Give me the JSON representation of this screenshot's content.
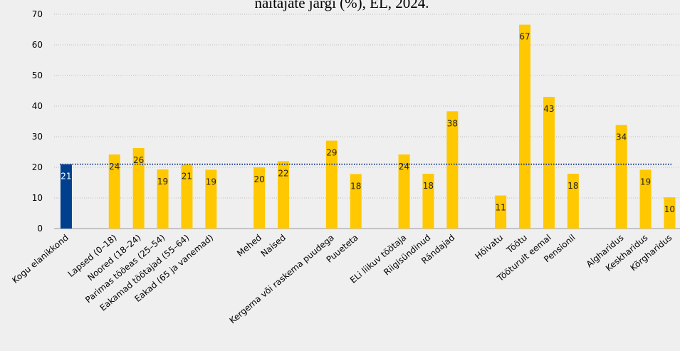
{
  "chart_data": {
    "type": "bar",
    "title": "näitajate järgi (%), EL, 2024.",
    "categories": [
      "Kogu elanikkond",
      null,
      "Lapsed (0–18)",
      "Noored (18–24)",
      "Parimas tööeas (25–54)",
      "Eakamad töötajad (55–64)",
      "Eakad (65 ja vanemad)",
      null,
      "Mehed",
      "Naised",
      null,
      "Kergema või raskema puudega",
      "Puueteta",
      null,
      "ELi liikuv töötaja",
      "Riigisündinud",
      "Rändajad",
      null,
      "Hõivatu",
      "Töötu",
      "Tööturult eemal",
      "Pensionil",
      null,
      "Algharidus",
      "Keskharidus",
      "Kõrgharidus"
    ],
    "values": [
      21,
      null,
      24.2,
      26.3,
      19.3,
      21,
      19.2,
      null,
      20,
      22,
      null,
      28.7,
      17.8,
      null,
      24.2,
      17.9,
      38.3,
      null,
      10.8,
      66.6,
      43,
      17.9,
      null,
      33.8,
      19.2,
      10.2
    ],
    "value_labels": [
      "21",
      null,
      "24",
      "26",
      "19",
      "21",
      "19",
      null,
      "20",
      "22",
      null,
      "29",
      "18",
      null,
      "24",
      "18",
      "38",
      null,
      "11",
      "67",
      "43",
      "18",
      null,
      "34",
      "19",
      "10"
    ],
    "colors": [
      "#003f8e",
      null,
      "#ffc800",
      "#ffc800",
      "#ffc800",
      "#ffc800",
      "#ffc800",
      null,
      "#ffc800",
      "#ffc800",
      null,
      "#ffc800",
      "#ffc800",
      null,
      "#ffc800",
      "#ffc800",
      "#ffc800",
      null,
      "#ffc800",
      "#ffc800",
      "#ffc800",
      "#ffc800",
      null,
      "#ffc800",
      "#ffc800",
      "#ffc800"
    ],
    "reference_line": 21,
    "reference_color": "#1f3f8f",
    "ylim": [
      0,
      70
    ],
    "yticks": [
      0,
      10,
      20,
      30,
      40,
      50,
      60,
      70
    ],
    "grid": true
  }
}
